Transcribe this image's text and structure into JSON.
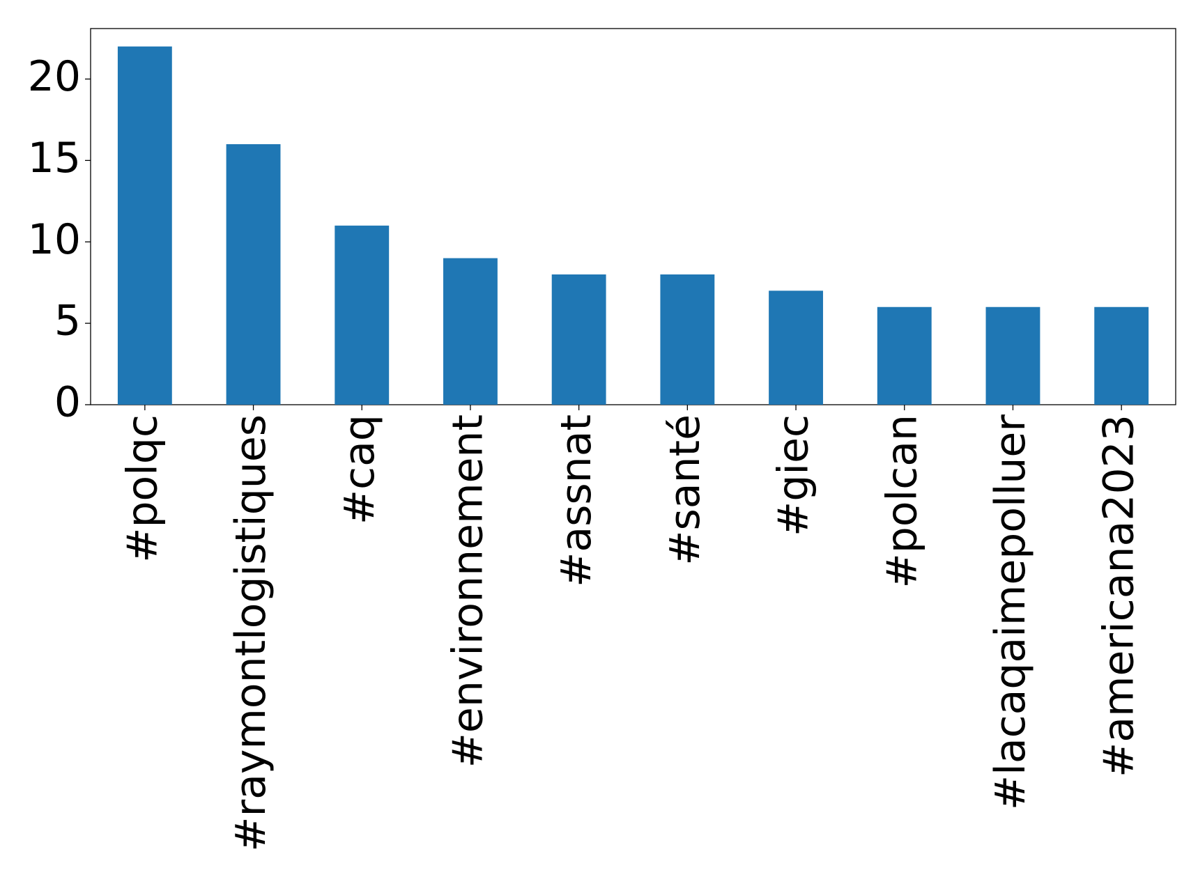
{
  "chart_data": {
    "type": "bar",
    "categories": [
      "#polqc",
      "#raymontlogistiques",
      "#caq",
      "#environnement",
      "#assnat",
      "#santé",
      "#giec",
      "#polcan",
      "#lacaqaimepolluer",
      "#americana2023"
    ],
    "values": [
      22,
      16,
      11,
      9,
      8,
      8,
      7,
      6,
      6,
      6
    ],
    "color": "#1f77b4",
    "ylim": [
      0,
      23.1
    ],
    "yticks": [
      0,
      5,
      10,
      15,
      20
    ],
    "grid": false
  }
}
